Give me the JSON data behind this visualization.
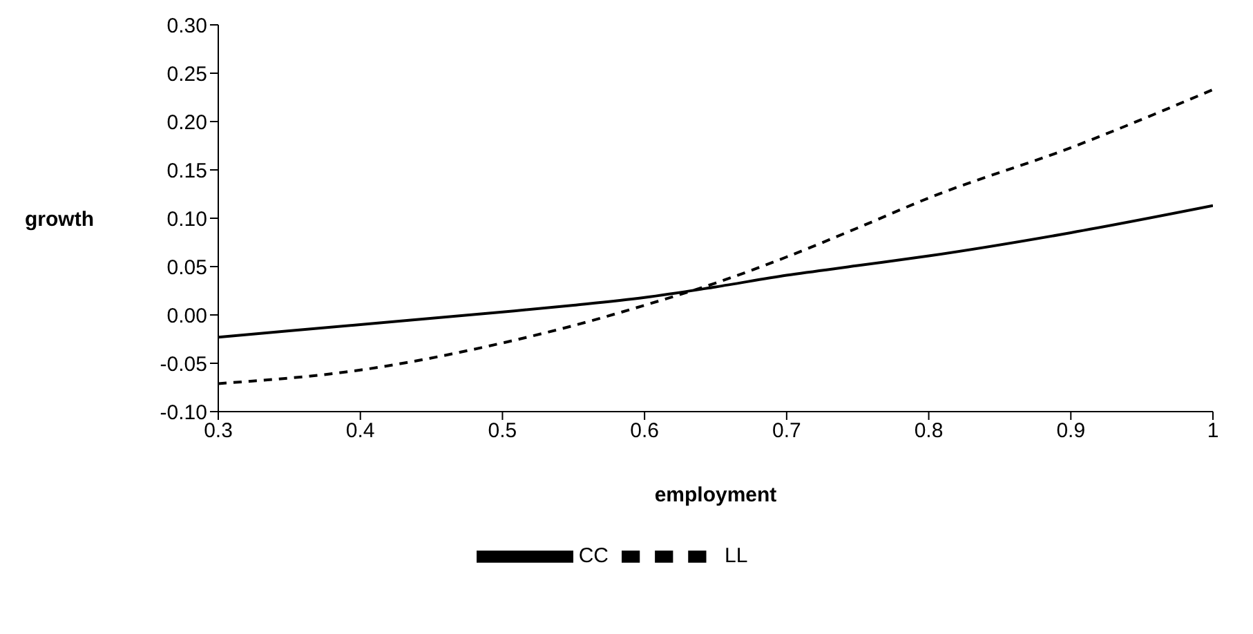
{
  "chart_data": {
    "type": "line",
    "xlabel": "employment",
    "ylabel": "growth",
    "x": [
      0.3,
      0.4,
      0.5,
      0.55,
      0.6,
      0.65,
      0.7,
      0.75,
      0.8,
      0.9,
      1.0
    ],
    "series": [
      {
        "name": "CC",
        "color": "#000000",
        "line_style": "solid",
        "values": [
          -0.023,
          -0.01,
          0.003,
          0.01,
          0.018,
          0.029,
          0.041,
          0.051,
          0.061,
          0.085,
          0.113
        ]
      },
      {
        "name": "LL",
        "color": "#000000",
        "line_style": "dashed",
        "values": [
          -0.071,
          -0.057,
          -0.029,
          -0.011,
          0.01,
          0.033,
          0.06,
          0.09,
          0.121,
          0.173,
          0.233
        ]
      }
    ],
    "xlim": [
      0.3,
      1
    ],
    "xticks": [
      0.3,
      0.4,
      0.5,
      0.6,
      0.7,
      0.8,
      0.9,
      1
    ],
    "ylim": [
      -0.1,
      0.3
    ],
    "yticks": [
      {
        "value": -0.1,
        "label": "-0.10"
      },
      -0.05,
      {
        "value": 0,
        "label": "0.00"
      },
      0.05,
      {
        "value": 0.1,
        "label": "0.10"
      },
      0.15,
      {
        "value": 0.2,
        "label": "0.20"
      },
      0.25,
      {
        "value": 0.3,
        "label": "0.30"
      }
    ],
    "legend": "bottom",
    "marker": "none",
    "grid": false
  }
}
